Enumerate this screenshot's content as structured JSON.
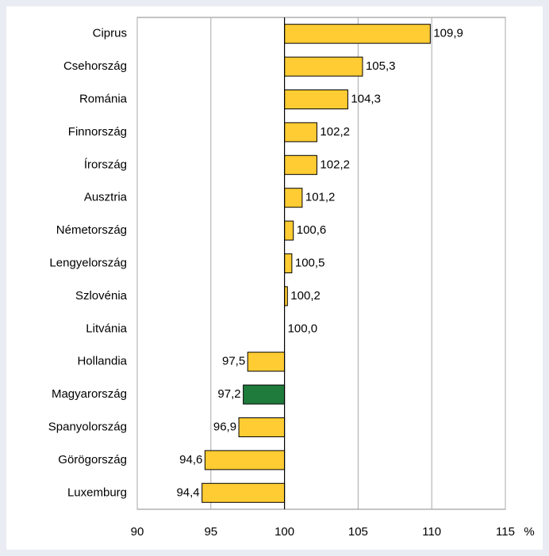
{
  "chart_data": {
    "type": "bar",
    "orientation": "horizontal",
    "categories": [
      "Ciprus",
      "Csehország",
      "Románia",
      "Finnország",
      "Írország",
      "Ausztria",
      "Németország",
      "Lengyelország",
      "Szlovénia",
      "Litvánia",
      "Hollandia",
      "Magyarország",
      "Spanyolország",
      "Görögország",
      "Luxemburg"
    ],
    "values": [
      109.9,
      105.3,
      104.3,
      102.2,
      102.2,
      101.2,
      100.6,
      100.5,
      100.2,
      100.0,
      97.5,
      97.2,
      96.9,
      94.6,
      94.4
    ],
    "value_labels": [
      "109,9",
      "105,3",
      "104,3",
      "102,2",
      "102,2",
      "101,2",
      "100,6",
      "100,5",
      "100,2",
      "100,0",
      "97,5",
      "97,2",
      "96,9",
      "94,6",
      "94,4"
    ],
    "colors": [
      "#ffcc33",
      "#ffcc33",
      "#ffcc33",
      "#ffcc33",
      "#ffcc33",
      "#ffcc33",
      "#ffcc33",
      "#ffcc33",
      "#ffcc33",
      "#ffcc33",
      "#ffcc33",
      "#1e7b3c",
      "#ffcc33",
      "#ffcc33",
      "#ffcc33"
    ],
    "base": 100,
    "xlim": [
      90,
      115
    ],
    "xticks": [
      90,
      95,
      100,
      105,
      110,
      115
    ],
    "xlabel": "%",
    "grid": true
  }
}
